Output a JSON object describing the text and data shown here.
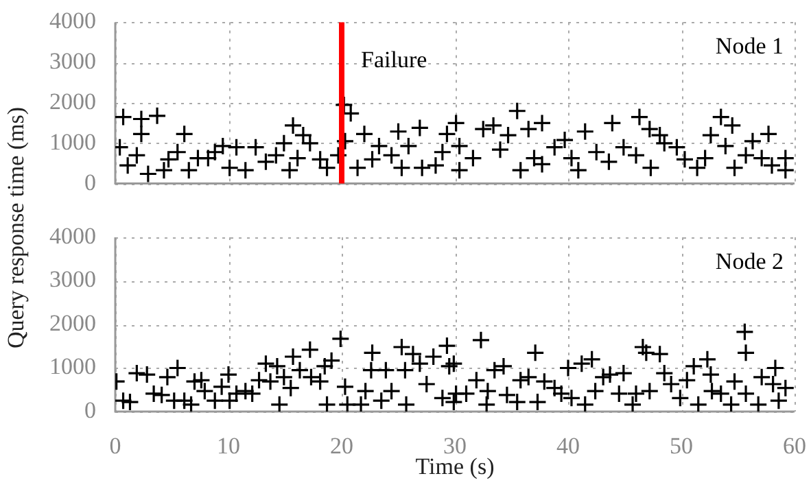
{
  "chart_data": [
    {
      "type": "scatter",
      "ylabel": "Query response time (ms)",
      "annotations": [
        "Node 1"
      ],
      "color": "#000000",
      "marker": "cross",
      "grid": true,
      "tick_labels": "y",
      "xlim": [
        0,
        60
      ],
      "xticks": [
        0,
        10,
        20,
        30,
        40,
        50,
        60
      ],
      "ylim": [
        0,
        4000
      ],
      "yticks": [
        0,
        1000,
        2000,
        3000,
        4000
      ],
      "ref_lines": [
        {
          "axis": "x",
          "value": 20,
          "label": "Failure",
          "color": "#ff0000"
        }
      ],
      "x": [
        0.7,
        2.3,
        3.7,
        2.3,
        0.4,
        1.1,
        1.9,
        2.9,
        4.3,
        4.7,
        5.5,
        6.1,
        6.5,
        7.3,
        8.2,
        8.8,
        9.5,
        10.1,
        10.7,
        11.5,
        12.4,
        13.3,
        14.2,
        14.9,
        15.4,
        15.7,
        16.1,
        16.6,
        17.2,
        18.1,
        18.7,
        19.7,
        20.2,
        20.8,
        20.3,
        21.4,
        22.0,
        22.7,
        23.3,
        24.4,
        25.0,
        25.3,
        25.9,
        26.9,
        27.1,
        28.3,
        28.9,
        29.3,
        30.1,
        30.4,
        30.4,
        31.6,
        32.5,
        33.4,
        34.0,
        34.7,
        35.5,
        35.8,
        36.5,
        37.0,
        37.7,
        37.7,
        38.8,
        39.7,
        40.3,
        40.9,
        41.5,
        42.5,
        43.6,
        43.9,
        44.9,
        46.0,
        46.3,
        47.2,
        47.3,
        48.1,
        48.5,
        49.6,
        50.3,
        51.4,
        52.1,
        52.6,
        53.5,
        53.9,
        54.5,
        54.7,
        55.7,
        56.3,
        57.1,
        57.7,
        58.0,
        59.2,
        59.2
      ],
      "values": [
        1650,
        1600,
        1680,
        1230,
        900,
        450,
        700,
        240,
        330,
        600,
        780,
        1230,
        330,
        630,
        630,
        780,
        930,
        390,
        900,
        330,
        900,
        540,
        700,
        1000,
        330,
        1440,
        630,
        1200,
        1000,
        600,
        390,
        700,
        1950,
        1740,
        1050,
        390,
        1230,
        600,
        930,
        700,
        1290,
        390,
        930,
        1380,
        390,
        450,
        780,
        1230,
        1500,
        330,
        930,
        630,
        1350,
        1440,
        840,
        1200,
        1800,
        330,
        1350,
        630,
        1500,
        480,
        900,
        1080,
        630,
        330,
        1290,
        780,
        540,
        1500,
        900,
        700,
        1650,
        1350,
        390,
        1200,
        1000,
        900,
        600,
        390,
        630,
        1200,
        1650,
        930,
        1440,
        390,
        700,
        1050,
        630,
        1230,
        450,
        630,
        330
      ]
    },
    {
      "type": "scatter",
      "xlabel": "Time (s)",
      "annotations": [
        "Node 2"
      ],
      "color": "#000000",
      "marker": "cross",
      "grid": true,
      "xlim": [
        0,
        60
      ],
      "xticks": [
        0,
        10,
        20,
        30,
        40,
        50,
        60
      ],
      "ylim": [
        0,
        4000
      ],
      "yticks": [
        0,
        1000,
        2000,
        3000,
        4000
      ],
      "x": [
        0.1,
        0.7,
        1.3,
        1.9,
        2.8,
        3.4,
        4.1,
        4.6,
        5.2,
        5.5,
        6.1,
        6.7,
        7.0,
        7.6,
        7.9,
        8.8,
        9.4,
        10.0,
        10.1,
        10.7,
        11.5,
        12.1,
        12.7,
        13.3,
        13.7,
        14.3,
        14.5,
        14.9,
        15.5,
        15.7,
        16.3,
        17.2,
        17.3,
        18.1,
        18.7,
        18.5,
        19.1,
        19.9,
        20.3,
        20.5,
        21.7,
        22.1,
        22.6,
        22.7,
        23.5,
        23.9,
        24.4,
        25.3,
        25.6,
        25.7,
        26.3,
        26.9,
        27.5,
        28.1,
        28.9,
        29.3,
        29.5,
        30.1,
        29.9,
        29.9,
        31.0,
        32.3,
        31.9,
        32.8,
        32.9,
        33.5,
        34.3,
        34.6,
        35.5,
        35.8,
        36.5,
        37.1,
        37.3,
        37.9,
        38.8,
        39.4,
        40.0,
        40.3,
        41.2,
        41.5,
        42.1,
        42.4,
        43.1,
        43.7,
        44.5,
        44.9,
        45.7,
        46.0,
        46.6,
        46.9,
        47.2,
        48.1,
        48.5,
        49.1,
        49.9,
        50.5,
        51.1,
        51.5,
        52.3,
        52.6,
        52.7,
        53.5,
        54.4,
        54.7,
        55.6,
        55.7,
        55.7,
        56.8,
        57.1,
        58.1,
        58.3,
        58.6,
        59.2
      ],
      "values": [
        690,
        250,
        220,
        880,
        850,
        410,
        380,
        790,
        250,
        1000,
        250,
        160,
        690,
        720,
        470,
        250,
        570,
        850,
        250,
        410,
        470,
        410,
        720,
        1100,
        690,
        1040,
        160,
        790,
        540,
        1260,
        950,
        1420,
        790,
        690,
        160,
        1040,
        1170,
        1670,
        570,
        160,
        160,
        470,
        950,
        1350,
        250,
        950,
        470,
        1480,
        950,
        160,
        1320,
        1100,
        630,
        1260,
        310,
        1510,
        1040,
        410,
        1100,
        220,
        410,
        1640,
        720,
        160,
        470,
        950,
        1040,
        380,
        220,
        720,
        790,
        1350,
        220,
        690,
        540,
        410,
        1000,
        310,
        1100,
        160,
        1200,
        470,
        790,
        850,
        410,
        880,
        160,
        410,
        1480,
        1350,
        470,
        1320,
        880,
        630,
        310,
        720,
        1040,
        160,
        1200,
        850,
        470,
        410,
        160,
        690,
        1830,
        1350,
        410,
        160,
        790,
        630,
        1000,
        250,
        540
      ]
    }
  ]
}
